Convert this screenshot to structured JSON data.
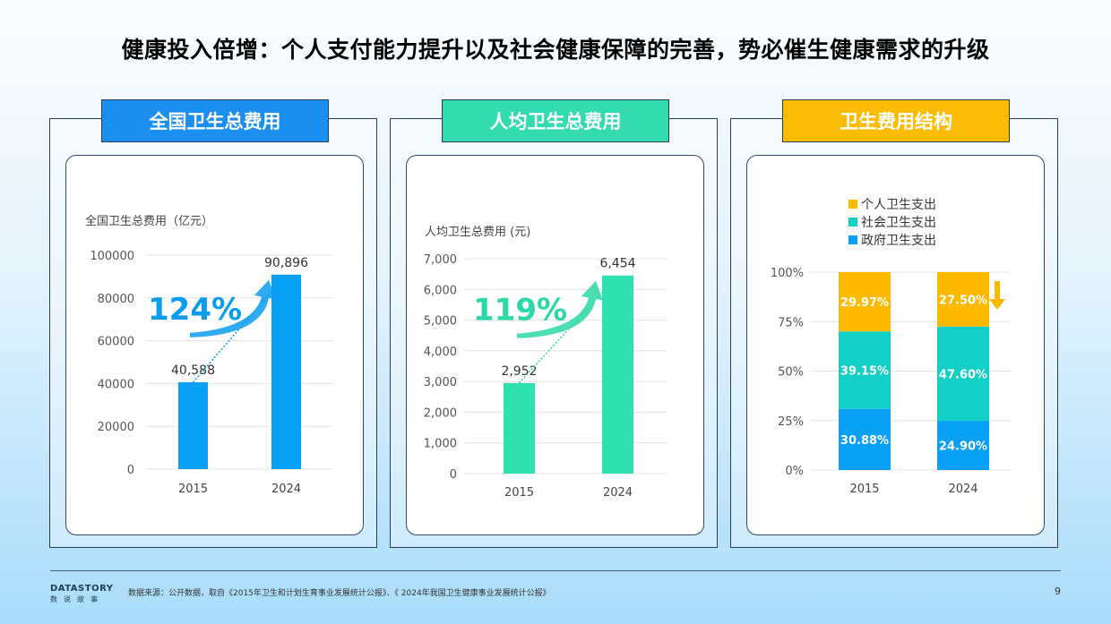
{
  "title": "健康投入倍增：个人支付能力提升以及社会健康保障的完善，势必催生健康需求的升级",
  "panels": [
    {
      "tab_label": "全国卫生总费用",
      "tab_color": "#1a8ff0"
    },
    {
      "tab_label": "人均卫生总费用",
      "tab_color": "#33dcb0"
    },
    {
      "tab_label": "卫生费用结构",
      "tab_color": "#fbbc05"
    }
  ],
  "chart_data": [
    {
      "type": "bar",
      "ylabel": "全国卫生总费用（亿元）",
      "categories": [
        "2015",
        "2024"
      ],
      "values": [
        40588,
        90896
      ],
      "data_labels": [
        "40,588",
        "90,896"
      ],
      "ylim": [
        0,
        100000
      ],
      "yticks": [
        "0",
        "20000",
        "40000",
        "60000",
        "80000",
        "100000"
      ],
      "color": "#0aa0f5",
      "grid": true,
      "annotation": "124%",
      "annotation_color": "#0a9cf0"
    },
    {
      "type": "bar",
      "ylabel": "人均卫生总费用 (元)",
      "categories": [
        "2015",
        "2024"
      ],
      "values": [
        2952,
        6454
      ],
      "data_labels": [
        "2,952",
        "6,454"
      ],
      "ylim": [
        0,
        7000
      ],
      "yticks": [
        "0",
        "1,000",
        "2,000",
        "3,000",
        "4,000",
        "5,000",
        "6,000",
        "7,000"
      ],
      "color": "#30e0b0",
      "grid": true,
      "annotation": "119%",
      "annotation_color": "#2bd8a8"
    },
    {
      "type": "bar",
      "stacked": true,
      "categories": [
        "2015",
        "2024"
      ],
      "series": [
        {
          "name": "政府卫生支出",
          "values": [
            30.88,
            24.9
          ],
          "labels": [
            "30.88%",
            "24.90%"
          ],
          "color": "#0aa0f5"
        },
        {
          "name": "社会卫生支出",
          "values": [
            39.15,
            47.6
          ],
          "labels": [
            "39.15%",
            "47.60%"
          ],
          "color": "#14cfc6"
        },
        {
          "name": "个人卫生支出",
          "values": [
            29.97,
            27.5
          ],
          "labels": [
            "29.97%",
            "27.50%"
          ],
          "color": "#fbb900"
        }
      ],
      "ylim": [
        0,
        100
      ],
      "yticks": [
        "0%",
        "25%",
        "50%",
        "75%",
        "100%"
      ],
      "grid": true,
      "legend": "top",
      "annotation_color": "#fbb900"
    }
  ],
  "footer": {
    "logo": "DATASTORY",
    "logo_sub": "数说故事",
    "source": "数据来源：公开数据，取自《2015年卫生和计划生育事业发展统计公报》、《 2024年我国卫生健康事业发展统计公报》",
    "page": "9"
  }
}
